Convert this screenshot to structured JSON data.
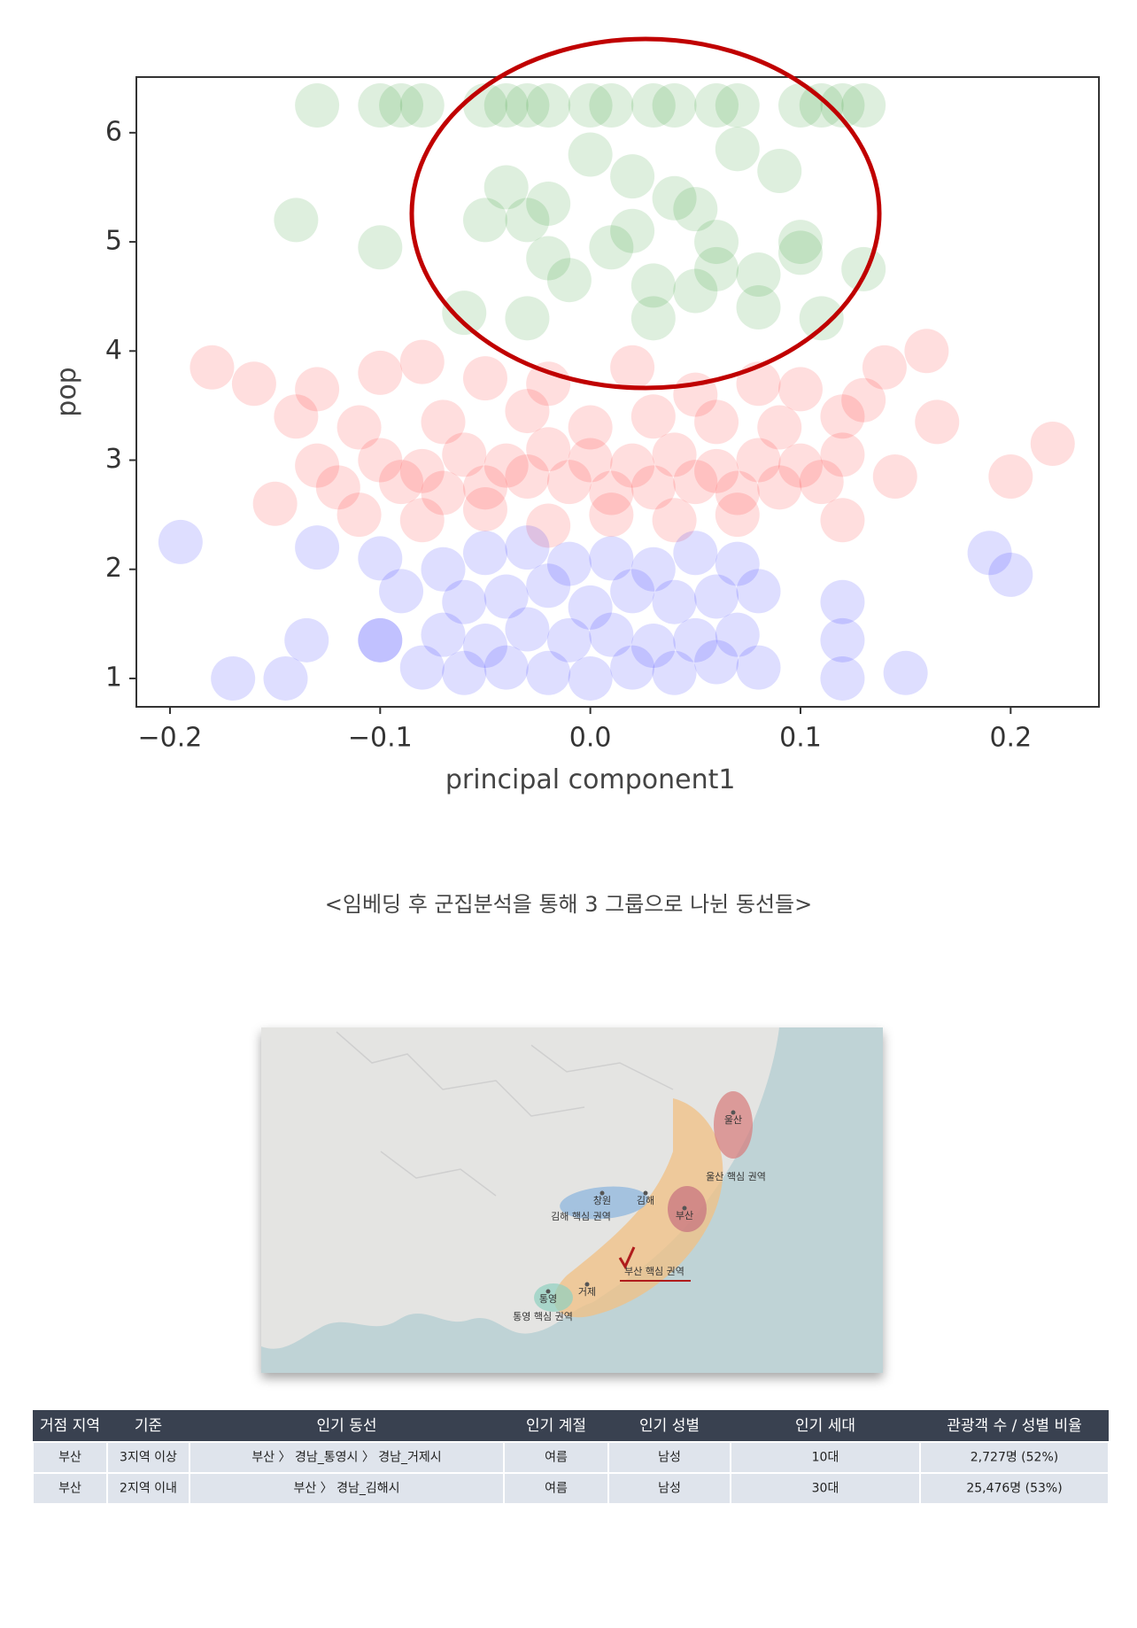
{
  "chart_data": {
    "type": "scatter",
    "xlabel": "principal component1",
    "ylabel": "pop",
    "xlim": [
      -0.216,
      0.242
    ],
    "ylim": [
      0.74,
      6.51
    ],
    "xticks": [
      {
        "value": -0.2,
        "label": "−0.2"
      },
      {
        "value": -0.1,
        "label": "−0.1"
      },
      {
        "value": 0,
        "label": "0.0"
      },
      0.1,
      0.2
    ],
    "yticks": [
      1,
      2,
      3,
      4,
      5,
      6
    ],
    "grid": false,
    "series": [
      {
        "color": "#008000",
        "x": [
          -0.13,
          -0.1,
          -0.09,
          -0.08,
          -0.05,
          -0.04,
          -0.03,
          -0.02,
          0,
          0.01,
          0.03,
          0.04,
          0.06,
          0.07,
          0.1,
          0.11,
          0.12,
          0.13,
          -0.14,
          -0.1,
          -0.04,
          -0.03,
          -0.02,
          0.0,
          0.02,
          0.04,
          0.05,
          0.07,
          0.09,
          0.1,
          -0.06,
          -0.03,
          -0.01,
          0.01,
          0.03,
          0.05,
          0.06,
          0.08,
          0.1,
          0.13,
          -0.05,
          -0.02,
          0.02,
          0.03,
          0.06,
          0.08,
          0.11
        ],
        "values": [
          6.25,
          6.25,
          6.25,
          6.25,
          6.25,
          6.25,
          6.25,
          6.25,
          6.25,
          6.25,
          6.25,
          6.25,
          6.25,
          6.25,
          6.25,
          6.25,
          6.25,
          6.25,
          5.2,
          4.95,
          5.5,
          5.2,
          5.35,
          5.8,
          5.6,
          5.4,
          5.3,
          5.85,
          5.65,
          5.0,
          4.35,
          4.3,
          4.65,
          4.95,
          4.6,
          4.55,
          4.75,
          4.7,
          4.9,
          4.75,
          5.2,
          4.85,
          5.1,
          4.3,
          5.0,
          4.4,
          4.3
        ]
      },
      {
        "color": "#ff0000",
        "x": [
          -0.18,
          -0.16,
          -0.13,
          -0.1,
          -0.08,
          -0.05,
          -0.02,
          0.02,
          0.05,
          0.08,
          0.1,
          0.14,
          0.16,
          -0.14,
          -0.11,
          -0.07,
          -0.03,
          0,
          0.03,
          0.06,
          0.09,
          0.12,
          0.13,
          0.165,
          -0.13,
          -0.1,
          -0.08,
          -0.06,
          -0.04,
          -0.02,
          0,
          0.02,
          0.04,
          0.06,
          0.08,
          0.1,
          0.12,
          -0.15,
          -0.12,
          -0.09,
          -0.07,
          -0.05,
          -0.03,
          -0.01,
          0.01,
          0.03,
          0.05,
          0.07,
          0.09,
          0.11,
          0.145,
          -0.11,
          -0.08,
          -0.05,
          -0.02,
          0.01,
          0.04,
          0.07,
          0.12,
          0.2,
          0.22
        ],
        "values": [
          3.85,
          3.7,
          3.65,
          3.8,
          3.9,
          3.75,
          3.7,
          3.85,
          3.6,
          3.7,
          3.65,
          3.85,
          4.0,
          3.4,
          3.3,
          3.35,
          3.45,
          3.3,
          3.4,
          3.35,
          3.3,
          3.4,
          3.55,
          3.35,
          2.95,
          3.0,
          2.9,
          3.05,
          2.95,
          3.1,
          3.0,
          2.95,
          3.05,
          2.9,
          3.0,
          2.95,
          3.05,
          2.6,
          2.75,
          2.8,
          2.7,
          2.75,
          2.85,
          2.8,
          2.7,
          2.75,
          2.8,
          2.7,
          2.75,
          2.8,
          2.85,
          2.5,
          2.45,
          2.55,
          2.4,
          2.5,
          2.45,
          2.5,
          2.45,
          2.85,
          3.15
        ]
      },
      {
        "color": "#0000ff",
        "x": [
          -0.195,
          -0.17,
          -0.145,
          -0.135,
          -0.1,
          -0.08,
          -0.06,
          -0.04,
          -0.02,
          0,
          0.02,
          0.04,
          0.06,
          0.08,
          0.12,
          0.15,
          -0.13,
          -0.1,
          -0.07,
          -0.05,
          -0.03,
          -0.01,
          0.01,
          0.03,
          0.05,
          0.07,
          0.12,
          -0.09,
          -0.06,
          -0.04,
          -0.02,
          0,
          0.02,
          0.04,
          0.06,
          0.08,
          0.12,
          -0.1,
          -0.07,
          -0.05,
          -0.03,
          -0.01,
          0.01,
          0.03,
          0.05,
          0.07,
          0.19,
          0.2
        ],
        "values": [
          2.25,
          1.0,
          1.0,
          1.35,
          1.35,
          1.1,
          1.05,
          1.1,
          1.05,
          1.0,
          1.1,
          1.05,
          1.15,
          1.1,
          1.0,
          1.05,
          2.2,
          1.35,
          1.4,
          1.3,
          1.45,
          1.35,
          1.4,
          1.3,
          1.35,
          1.4,
          1.35,
          1.8,
          1.7,
          1.75,
          1.85,
          1.65,
          1.8,
          1.7,
          1.75,
          1.8,
          1.7,
          2.1,
          2.0,
          2.15,
          2.2,
          2.05,
          2.1,
          2.0,
          2.15,
          2.05,
          2.15,
          1.95
        ]
      }
    ]
  },
  "caption": "<임베딩 후 군집분석을 통해 3 그룹으로 나뉜 동선들>",
  "map": {
    "labels": [
      "울산",
      "울산 핵심 권역",
      "창원",
      "김해",
      "부산",
      "김해 핵심 권역",
      "부산 핵심 권역",
      "통영",
      "거제",
      "통영 핵심 권역"
    ]
  },
  "table": {
    "header": [
      "거점 지역",
      "기준",
      "인기 동선",
      "인기 계절",
      "인기 성별",
      "인기 세대",
      "관광객 수 / 성별 비율"
    ],
    "rows": [
      [
        "부산",
        "3지역 이상",
        "부산 〉 경남_통영시 〉 경남_거제시",
        "여름",
        "남성",
        "10대",
        "2,727명 (52%)"
      ],
      [
        "부산",
        "2지역 이내",
        "부산 〉 경남_김해시",
        "여름",
        "남성",
        "30대",
        "25,476명 (53%)"
      ]
    ]
  }
}
